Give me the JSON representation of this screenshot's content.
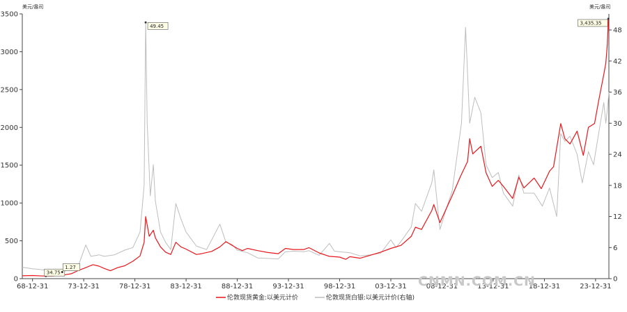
{
  "chart_data": {
    "type": "line",
    "left_axis_unit": "美元/盎司",
    "right_axis_unit": "美元/盎司",
    "x_ticks": [
      "68-12-31",
      "73-12-31",
      "78-12-31",
      "83-12-31",
      "88-12-31",
      "93-12-31",
      "98-12-31",
      "03-12-31",
      "08-12-31",
      "13-12-31",
      "18-12-31",
      "23-12-31"
    ],
    "x_range": [
      1968.0,
      2025.3
    ],
    "y_left": {
      "range": [
        0,
        3500
      ],
      "ticks": [
        0,
        500,
        1000,
        1500,
        2000,
        2500,
        3000,
        3500
      ]
    },
    "y_right": {
      "range": [
        0,
        51.1
      ],
      "ticks": [
        0,
        6,
        12,
        18,
        24,
        30,
        36,
        42,
        48
      ]
    },
    "grid": false,
    "legend_position": "bottom",
    "series": [
      {
        "name": "伦敦现货黄金:以美元计价",
        "axis": "left",
        "color": "#e8161b",
        "points": [
          [
            1968.0,
            38
          ],
          [
            1969.0,
            41
          ],
          [
            1970.0,
            35
          ],
          [
            1971.0,
            36
          ],
          [
            1972.0,
            48
          ],
          [
            1972.8,
            65
          ],
          [
            1973.5,
            110
          ],
          [
            1974.0,
            135
          ],
          [
            1974.9,
            185
          ],
          [
            1975.5,
            165
          ],
          [
            1976.0,
            135
          ],
          [
            1976.6,
            105
          ],
          [
            1977.3,
            145
          ],
          [
            1978.0,
            170
          ],
          [
            1978.8,
            230
          ],
          [
            1979.5,
            300
          ],
          [
            1979.9,
            480
          ],
          [
            1980.05,
            820
          ],
          [
            1980.4,
            560
          ],
          [
            1980.8,
            640
          ],
          [
            1981.0,
            540
          ],
          [
            1981.5,
            420
          ],
          [
            1982.0,
            350
          ],
          [
            1982.5,
            320
          ],
          [
            1983.0,
            480
          ],
          [
            1983.5,
            420
          ],
          [
            1984.0,
            390
          ],
          [
            1985.0,
            320
          ],
          [
            1985.5,
            330
          ],
          [
            1986.5,
            360
          ],
          [
            1987.3,
            420
          ],
          [
            1987.9,
            490
          ],
          [
            1988.5,
            440
          ],
          [
            1989.0,
            400
          ],
          [
            1989.5,
            370
          ],
          [
            1990.0,
            400
          ],
          [
            1991.0,
            370
          ],
          [
            1992.0,
            345
          ],
          [
            1993.0,
            330
          ],
          [
            1993.7,
            400
          ],
          [
            1994.5,
            385
          ],
          [
            1995.5,
            385
          ],
          [
            1996.0,
            410
          ],
          [
            1997.0,
            340
          ],
          [
            1998.0,
            295
          ],
          [
            1999.0,
            285
          ],
          [
            1999.6,
            255
          ],
          [
            2000.0,
            290
          ],
          [
            2001.0,
            270
          ],
          [
            2002.0,
            310
          ],
          [
            2003.0,
            350
          ],
          [
            2004.0,
            400
          ],
          [
            2005.0,
            440
          ],
          [
            2006.0,
            560
          ],
          [
            2006.4,
            680
          ],
          [
            2007.0,
            650
          ],
          [
            2008.0,
            900
          ],
          [
            2008.2,
            980
          ],
          [
            2008.8,
            740
          ],
          [
            2009.5,
            950
          ],
          [
            2010.0,
            1100
          ],
          [
            2010.8,
            1350
          ],
          [
            2011.5,
            1550
          ],
          [
            2011.7,
            1850
          ],
          [
            2012.0,
            1650
          ],
          [
            2012.8,
            1750
          ],
          [
            2013.3,
            1400
          ],
          [
            2013.9,
            1220
          ],
          [
            2014.5,
            1300
          ],
          [
            2015.0,
            1220
          ],
          [
            2015.9,
            1060
          ],
          [
            2016.5,
            1340
          ],
          [
            2017.0,
            1200
          ],
          [
            2018.0,
            1330
          ],
          [
            2018.7,
            1190
          ],
          [
            2019.5,
            1420
          ],
          [
            2019.9,
            1480
          ],
          [
            2020.6,
            2050
          ],
          [
            2021.0,
            1850
          ],
          [
            2021.5,
            1780
          ],
          [
            2022.2,
            1950
          ],
          [
            2022.8,
            1630
          ],
          [
            2023.3,
            2000
          ],
          [
            2023.9,
            2050
          ],
          [
            2024.3,
            2350
          ],
          [
            2024.8,
            2700
          ],
          [
            2025.0,
            2850
          ],
          [
            2025.15,
            3100
          ],
          [
            2025.25,
            3435.35
          ],
          [
            2025.3,
            3300
          ]
        ]
      },
      {
        "name": "伦敦现货白银:以美元计价(右轴)",
        "axis": "right",
        "color": "#bdbdbd",
        "points": [
          [
            1968.0,
            2.2
          ],
          [
            1969.0,
            1.9
          ],
          [
            1970.0,
            1.7
          ],
          [
            1971.0,
            1.4
          ],
          [
            1971.9,
            1.27
          ],
          [
            1972.5,
            1.7
          ],
          [
            1973.5,
            2.6
          ],
          [
            1974.2,
            6.5
          ],
          [
            1974.7,
            4.3
          ],
          [
            1975.5,
            4.6
          ],
          [
            1976.0,
            4.3
          ],
          [
            1977.0,
            4.6
          ],
          [
            1978.0,
            5.5
          ],
          [
            1978.8,
            6.0
          ],
          [
            1979.5,
            9.0
          ],
          [
            1979.9,
            18.0
          ],
          [
            1980.05,
            49.45
          ],
          [
            1980.2,
            30.0
          ],
          [
            1980.5,
            16.0
          ],
          [
            1980.8,
            22.0
          ],
          [
            1981.0,
            15.0
          ],
          [
            1981.5,
            9.0
          ],
          [
            1982.0,
            7.0
          ],
          [
            1982.5,
            5.6
          ],
          [
            1983.0,
            14.5
          ],
          [
            1983.5,
            11.5
          ],
          [
            1984.0,
            9.0
          ],
          [
            1985.0,
            6.3
          ],
          [
            1986.0,
            5.6
          ],
          [
            1987.3,
            10.5
          ],
          [
            1987.9,
            7.0
          ],
          [
            1988.5,
            6.6
          ],
          [
            1989.0,
            5.5
          ],
          [
            1990.0,
            5.0
          ],
          [
            1991.0,
            4.0
          ],
          [
            1992.0,
            3.9
          ],
          [
            1993.0,
            3.8
          ],
          [
            1993.7,
            5.2
          ],
          [
            1994.5,
            5.3
          ],
          [
            1995.5,
            5.2
          ],
          [
            1996.0,
            5.4
          ],
          [
            1997.0,
            4.5
          ],
          [
            1998.0,
            6.8
          ],
          [
            1998.5,
            5.3
          ],
          [
            1999.0,
            5.2
          ],
          [
            2000.0,
            5.0
          ],
          [
            2001.0,
            4.4
          ],
          [
            2002.0,
            4.6
          ],
          [
            2003.0,
            4.9
          ],
          [
            2004.0,
            7.5
          ],
          [
            2004.5,
            6.0
          ],
          [
            2005.0,
            7.2
          ],
          [
            2006.0,
            10.0
          ],
          [
            2006.4,
            14.5
          ],
          [
            2007.0,
            13.0
          ],
          [
            2008.0,
            18.5
          ],
          [
            2008.2,
            21.0
          ],
          [
            2008.8,
            9.5
          ],
          [
            2009.5,
            14.0
          ],
          [
            2010.0,
            17.0
          ],
          [
            2010.9,
            30.0
          ],
          [
            2011.3,
            48.5
          ],
          [
            2011.7,
            30.0
          ],
          [
            2012.2,
            35.0
          ],
          [
            2012.8,
            32.0
          ],
          [
            2013.3,
            22.0
          ],
          [
            2013.9,
            19.5
          ],
          [
            2014.5,
            20.5
          ],
          [
            2015.0,
            16.5
          ],
          [
            2015.9,
            14.0
          ],
          [
            2016.5,
            20.0
          ],
          [
            2017.0,
            16.5
          ],
          [
            2018.0,
            16.5
          ],
          [
            2018.8,
            14.0
          ],
          [
            2019.5,
            17.5
          ],
          [
            2020.2,
            12.0
          ],
          [
            2020.6,
            28.0
          ],
          [
            2021.0,
            26.5
          ],
          [
            2021.5,
            27.5
          ],
          [
            2022.2,
            24.0
          ],
          [
            2022.7,
            18.5
          ],
          [
            2023.3,
            24.5
          ],
          [
            2023.8,
            22.0
          ],
          [
            2024.3,
            28.0
          ],
          [
            2024.8,
            34.0
          ],
          [
            2025.0,
            30.0
          ],
          [
            2025.2,
            33.5
          ],
          [
            2025.3,
            36.0
          ]
        ]
      }
    ],
    "annotations": [
      {
        "series": 0,
        "x": 1970.3,
        "y": 34.75,
        "label": "34.75"
      },
      {
        "series": 1,
        "x": 1971.9,
        "y": 1.27,
        "label": "1.27"
      },
      {
        "series": 1,
        "x": 1980.05,
        "y": 49.45,
        "label": "49.45"
      },
      {
        "series": 0,
        "x": 2025.25,
        "y": 3435.35,
        "label": "3,435.35"
      }
    ]
  },
  "watermark": "CNMN.COM.CN"
}
